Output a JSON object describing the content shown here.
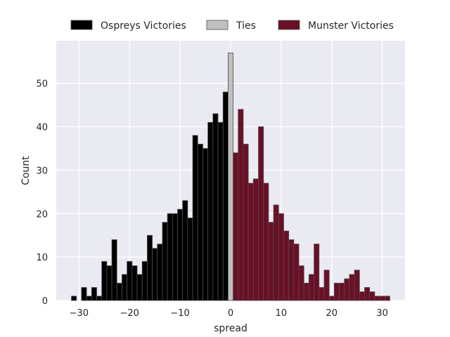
{
  "chart_data": {
    "type": "bar",
    "xlabel": "spread",
    "ylabel": "Count",
    "xlim": [
      -34.5,
      34.5
    ],
    "ylim": [
      0,
      59.8
    ],
    "xticks": [
      -30,
      -20,
      -10,
      0,
      10,
      20,
      30
    ],
    "xtick_labels": [
      "−30",
      "−20",
      "−10",
      "0",
      "10",
      "20",
      "30"
    ],
    "yticks": [
      0,
      10,
      20,
      30,
      40,
      50
    ],
    "yticks_labels": [
      "0",
      "10",
      "20",
      "30",
      "40",
      "50"
    ],
    "grid": true,
    "legend_position": "top-center",
    "series": [
      {
        "name": "Ospreys Victories",
        "color": "#000000",
        "x": [
          -31,
          -30,
          -29,
          -28,
          -27,
          -26,
          -25,
          -24,
          -23,
          -22,
          -21,
          -20,
          -19,
          -18,
          -17,
          -16,
          -15,
          -14,
          -13,
          -12,
          -11,
          -10,
          -9,
          -8,
          -7,
          -6,
          -5,
          -4,
          -3,
          -2,
          -1
        ],
        "values": [
          1,
          0,
          3,
          1,
          3,
          1,
          9,
          8,
          14,
          4,
          6,
          9,
          8,
          6,
          9,
          15,
          12,
          13,
          18,
          20,
          20,
          21,
          23,
          19,
          38,
          36,
          35,
          41,
          43,
          41,
          48
        ]
      },
      {
        "name": "Ties",
        "color": "#c0c0c0",
        "x": [
          0
        ],
        "values": [
          57
        ]
      },
      {
        "name": "Munster Victories",
        "color": "#6b0f26",
        "x": [
          1,
          2,
          3,
          4,
          5,
          6,
          7,
          8,
          9,
          10,
          11,
          12,
          13,
          14,
          15,
          16,
          17,
          18,
          19,
          20,
          21,
          22,
          23,
          24,
          25,
          26,
          27,
          28,
          29,
          30,
          31
        ],
        "values": [
          34,
          44,
          36,
          27,
          28,
          40,
          27,
          18,
          22,
          20,
          16,
          14,
          13,
          8,
          4,
          6,
          13,
          3,
          7,
          1,
          4,
          4,
          5,
          6,
          7,
          2,
          3,
          2,
          1,
          1,
          1
        ]
      }
    ]
  }
}
